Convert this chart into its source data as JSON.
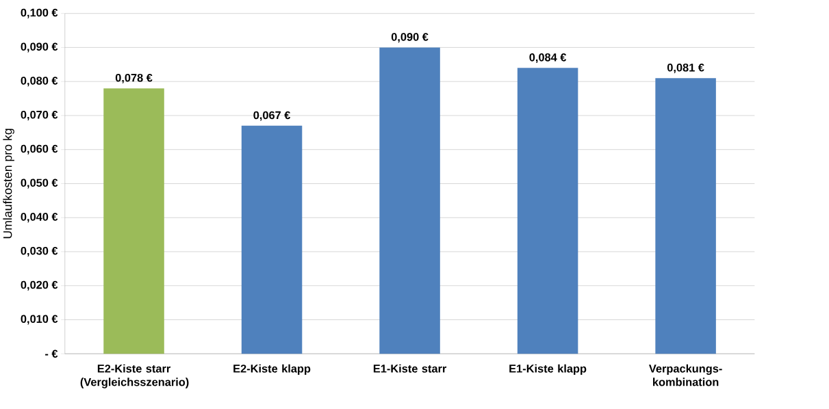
{
  "chart_data": {
    "type": "bar",
    "ylabel": "Umlaufkosten pro kg",
    "categories": [
      "E2-Kiste starr (Vergleichsszenario)",
      "E2-Kiste klapp",
      "E1-Kiste starr",
      "E1-Kiste klapp",
      "Verpackungs-kombination"
    ],
    "values": [
      0.078,
      0.067,
      0.09,
      0.084,
      0.081
    ],
    "colors": [
      "#9bbb59",
      "#4f81bd",
      "#4f81bd",
      "#4f81bd",
      "#4f81bd"
    ],
    "value_labels": [
      "0,078 €",
      "0,067 €",
      "0,090 €",
      "0,084 €",
      "0,081 €"
    ],
    "ylim": [
      0,
      0.1
    ],
    "yticks": [
      {
        "value": 0,
        "label": "-  €"
      },
      {
        "value": 0.01,
        "label": "0,010 €"
      },
      {
        "value": 0.02,
        "label": "0,020 €"
      },
      {
        "value": 0.03,
        "label": "0,030 €"
      },
      {
        "value": 0.04,
        "label": "0,040 €"
      },
      {
        "value": 0.05,
        "label": "0,050 €"
      },
      {
        "value": 0.06,
        "label": "0,060 €"
      },
      {
        "value": 0.07,
        "label": "0,070 €"
      },
      {
        "value": 0.08,
        "label": "0,080 €"
      },
      {
        "value": 0.09,
        "label": "0,090 €"
      },
      {
        "value": 0.1,
        "label": "0,100 €"
      }
    ],
    "grid": "y"
  }
}
